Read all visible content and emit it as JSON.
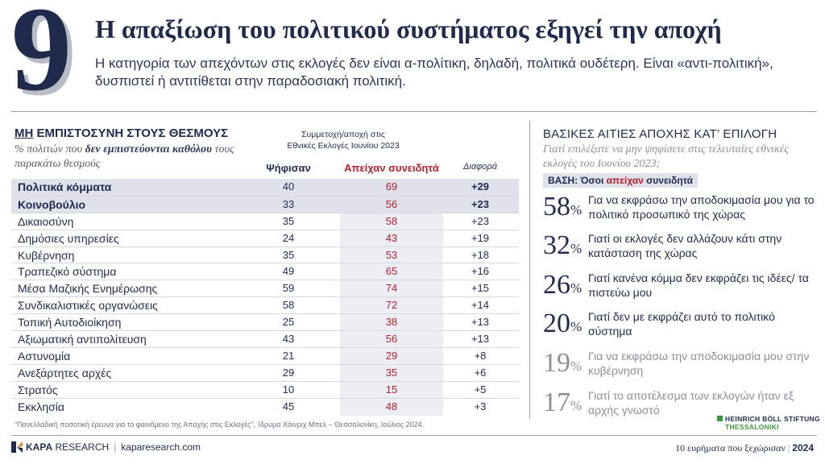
{
  "header": {
    "number": "9",
    "title": "Η απαξίωση του πολιτικού συστήματος εξηγεί την αποχή",
    "subtitle": "Η κατηγορία των απεχόντων στις εκλογές δεν είναι α-πολίτικη, δηλαδή, πολιτικά ουδέτερη. Είναι «αντι-πολιτική», δυσπιστεί ή αντιτίθεται στην παραδοσιακή πολιτική."
  },
  "left": {
    "heading_underlined": "ΜΗ",
    "heading_rest": " ΕΜΠΙΣΤΟΣΥΝΗ ΣΤΟΥΣ ΘΕΣΜΟΥΣ",
    "sub_pre": "% πολιτών που ",
    "sub_bold": "δεν εμπιστεύονται καθόλου",
    "sub_post": " τους παρακάτω θεσμούς",
    "participation_line1": "Συμμετοχή/αποχή στις",
    "participation_line2": "Εθνικές Εκλογές Ιουνίου 2023",
    "col_voted": "Ψήφισαν",
    "col_abstained": "Απείχαν συνειδητά",
    "col_diff": "Διαφορά",
    "rows": [
      {
        "name": "Πολιτικά κόμματα",
        "voted": "40",
        "abstained": "69",
        "diff": "+29"
      },
      {
        "name": "Κοινοβούλιο",
        "voted": "33",
        "abstained": "56",
        "diff": "+23"
      },
      {
        "name": "Δικαιοσύνη",
        "voted": "35",
        "abstained": "58",
        "diff": "+23"
      },
      {
        "name": "Δημόσιες υπηρεσίες",
        "voted": "24",
        "abstained": "43",
        "diff": "+19"
      },
      {
        "name": "Κυβέρνηση",
        "voted": "35",
        "abstained": "53",
        "diff": "+18"
      },
      {
        "name": "Τραπεζικό σύστημα",
        "voted": "49",
        "abstained": "65",
        "diff": "+16"
      },
      {
        "name": "Μέσα Μαζικής Ενημέρωσης",
        "voted": "59",
        "abstained": "74",
        "diff": "+15"
      },
      {
        "name": "Συνδικαλιστικές οργανώσεις",
        "voted": "58",
        "abstained": "72",
        "diff": "+14"
      },
      {
        "name": "Τοπική Αυτοδιοίκηση",
        "voted": "25",
        "abstained": "38",
        "diff": "+13"
      },
      {
        "name": "Αξιωματική αντιπολίτευση",
        "voted": "43",
        "abstained": "56",
        "diff": "+13"
      },
      {
        "name": "Αστυνομία",
        "voted": "21",
        "abstained": "29",
        "diff": "+8"
      },
      {
        "name": "Ανεξάρτητες αρχές",
        "voted": "29",
        "abstained": "35",
        "diff": "+6"
      },
      {
        "name": "Στρατός",
        "voted": "10",
        "abstained": "15",
        "diff": "+5"
      },
      {
        "name": "Εκκλησία",
        "voted": "45",
        "abstained": "48",
        "diff": "+3"
      }
    ]
  },
  "right": {
    "heading": "ΒΑΣΙΚΕΣ ΑΙΤΙΕΣ ΑΠΟΧΗΣ ΚΑΤ’ ΕΠΙΛΟΓΗ",
    "question": "Γιατί επιλέξατε να μην ψηφίσετε στις τελευταίες εθνικές εκλογές του Ιουνίου 2023;",
    "base_pre": "ΒΑΣΗ: Όσοι ",
    "base_red": "απείχαν",
    "base_post": " συνειδητά",
    "reasons": [
      {
        "pct": "58",
        "text": "Για να εκφράσω την αποδοκιμασία μου για το πολιτικό προσωπικό της χώρας"
      },
      {
        "pct": "32",
        "text": "Γιατί οι εκλογές δεν αλλάζουν κάτι στην κατάσταση της χώρας"
      },
      {
        "pct": "26",
        "text": "Γιατί κανένα κόμμα δεν εκφράζει τις ιδέες/ τα πιστεύω μου"
      },
      {
        "pct": "20",
        "text": "Γιατί δεν με εκφράζει αυτό το πολιτικό σύστημα"
      },
      {
        "pct": "19",
        "text": "Για να εκφράσω την αποδοκιμασία μου στην κυβέρνηση"
      },
      {
        "pct": "17",
        "text": "Γιατί το αποτέλεσμα των εκλογών ήταν εξ αρχής γνωστό"
      }
    ],
    "percent_sign": "%"
  },
  "footer": {
    "footnote": "“Πανελλαδική ποσοτική έρευνα για το φαινόμενο της Αποχής στις Εκλογές”, Ίδρυμα Χάινριχ Μπελ – Θεσσαλονίκη, Ιούλιος 2024.",
    "hbs_line1": "HEINRICH BÖLL STIFTUNG",
    "hbs_line2": "THESSALONIKI",
    "logo_kapa": "KAPA",
    "logo_research": "RESEARCH",
    "website": "kaparesearch.com",
    "series": "10 ευρήματα που ξεχώρισαν",
    "year": "2024"
  },
  "colors": {
    "navy": "#1f2a4d",
    "red": "#b51f2e",
    "highlight": "#dfe1eb",
    "green": "#3c9a3c"
  }
}
